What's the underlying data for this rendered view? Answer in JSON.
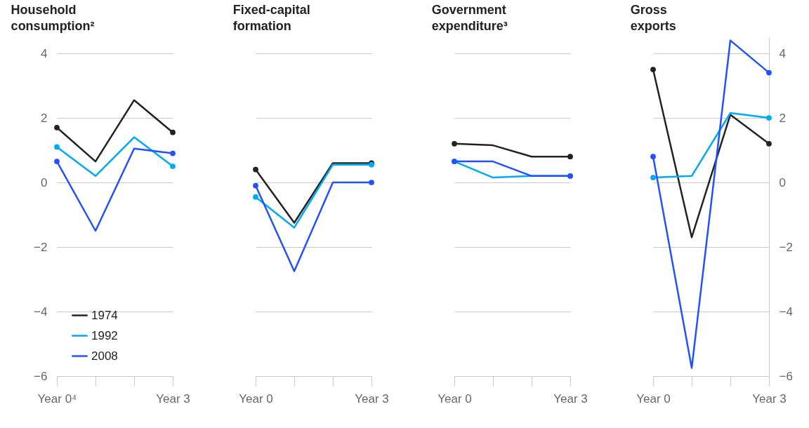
{
  "chart_data": [
    {
      "type": "line",
      "title": "Household consumption²",
      "categories": [
        "Year 0⁴",
        null,
        null,
        "Year 3"
      ],
      "ylim": [
        -6,
        4
      ],
      "yticks": [
        4,
        2,
        0,
        {
          "value": -2,
          "label": "−2"
        },
        {
          "value": -4,
          "label": "−4"
        },
        {
          "value": -6,
          "label": "−6"
        }
      ],
      "grid": "y",
      "legend": "bottom left",
      "marker": "circle",
      "series": [
        {
          "name": "1974",
          "color": "#222222",
          "values": [
            1.7,
            0.65,
            2.55,
            1.55
          ]
        },
        {
          "name": "1992",
          "color": "#00a9f4",
          "values": [
            1.1,
            0.2,
            1.4,
            0.5
          ]
        },
        {
          "name": "2008",
          "color": "#2251ff",
          "values": [
            0.65,
            -1.5,
            1.05,
            0.9
          ]
        }
      ]
    },
    {
      "type": "line",
      "title": "Fixed-capital formation",
      "categories": [
        "Year 0",
        null,
        null,
        "Year 3"
      ],
      "ylim": [
        -6,
        4
      ],
      "yticks": [
        4,
        2,
        0,
        -2,
        -4,
        -6
      ],
      "grid": "y",
      "tick_labels": "x",
      "marker": "circle",
      "series": [
        {
          "color": "#222222",
          "values": [
            0.4,
            -1.25,
            0.6,
            0.6
          ]
        },
        {
          "color": "#00a9f4",
          "values": [
            -0.45,
            -1.4,
            0.55,
            0.55
          ]
        },
        {
          "color": "#2251ff",
          "values": [
            -0.1,
            -2.75,
            0,
            0
          ]
        }
      ]
    },
    {
      "type": "line",
      "title": "Government expenditure³",
      "categories": [
        "Year 0",
        null,
        null,
        "Year 3"
      ],
      "ylim": [
        -6,
        4
      ],
      "yticks": [
        4,
        2,
        0,
        -2,
        -4,
        -6
      ],
      "grid": "y",
      "tick_labels": "x",
      "marker": "circle",
      "series": [
        {
          "color": "#222222",
          "values": [
            1.2,
            1.15,
            0.8,
            0.8
          ]
        },
        {
          "color": "#00a9f4",
          "values": [
            0.65,
            0.15,
            0.2,
            0.2
          ]
        },
        {
          "color": "#2251ff",
          "values": [
            0.65,
            0.65,
            0.2,
            0.2
          ]
        }
      ]
    },
    {
      "type": "line",
      "title": "Gross exports",
      "categories": [
        "Year 0",
        null,
        null,
        "Year 3"
      ],
      "y2lim": [
        -6,
        4.5
      ],
      "y2ticks": [
        4,
        2,
        0,
        {
          "value": -2,
          "label": "−2"
        },
        {
          "value": -4,
          "label": "−4"
        },
        {
          "value": -6,
          "label": "−6"
        }
      ],
      "grid": "y",
      "marker": "circle",
      "series": [
        {
          "color": "#222222",
          "axis": "y2",
          "values": [
            3.5,
            -1.7,
            2.1,
            1.2
          ]
        },
        {
          "color": "#00a9f4",
          "axis": "y2",
          "values": [
            0.15,
            0.2,
            2.15,
            2.0
          ]
        },
        {
          "color": "#2251ff",
          "axis": "y2",
          "values": [
            0.8,
            -5.75,
            4.4,
            3.4
          ]
        }
      ]
    }
  ]
}
